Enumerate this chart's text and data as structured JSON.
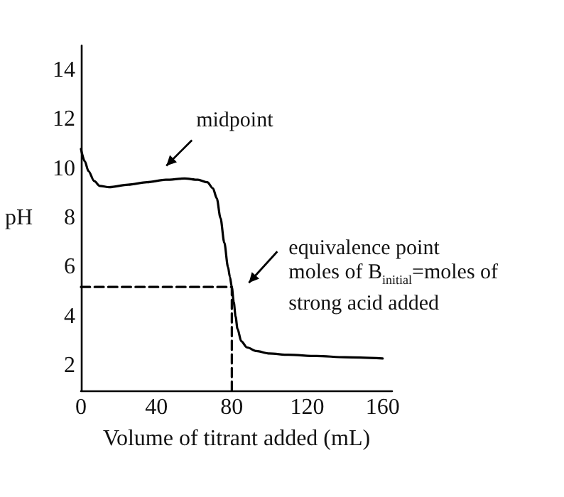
{
  "chart_data": {
    "type": "line",
    "xlabel": "Volume of titrant added (mL)",
    "ylabel": "pH",
    "xlim": [
      0,
      165
    ],
    "xticks": [
      0,
      40,
      80,
      120,
      160
    ],
    "ylim": [
      1,
      15
    ],
    "yticks": [
      2,
      4,
      6,
      8,
      10,
      12,
      14
    ],
    "marker": "none",
    "series": [
      {
        "color": "#000000",
        "line_style": "solid",
        "x": [
          0,
          2,
          4,
          7,
          10,
          15,
          25,
          35,
          45,
          55,
          62,
          67,
          70,
          72,
          74,
          76,
          78,
          79,
          80,
          81,
          82,
          83,
          85,
          88,
          93,
          100,
          110,
          125,
          140,
          160
        ],
        "values": [
          10.8,
          10.3,
          9.9,
          9.5,
          9.3,
          9.25,
          9.35,
          9.45,
          9.55,
          9.6,
          9.55,
          9.45,
          9.2,
          8.8,
          8.0,
          7.0,
          6.0,
          5.6,
          5.2,
          4.6,
          4.0,
          3.5,
          3.0,
          2.75,
          2.6,
          2.5,
          2.45,
          2.4,
          2.35,
          2.3
        ]
      },
      {
        "color": "#000000",
        "line_style": "dashed",
        "x": [
          0,
          80,
          80
        ],
        "values": [
          5.2,
          5.2,
          1
        ]
      }
    ],
    "annotations": [
      {
        "text": "midpoint",
        "x": 40,
        "y": 9.6
      },
      {
        "text": "equivalence point\nmoles of B$_{initial}$=moles of\nstrong acid added",
        "x": 80,
        "y": 5.2
      }
    ]
  }
}
